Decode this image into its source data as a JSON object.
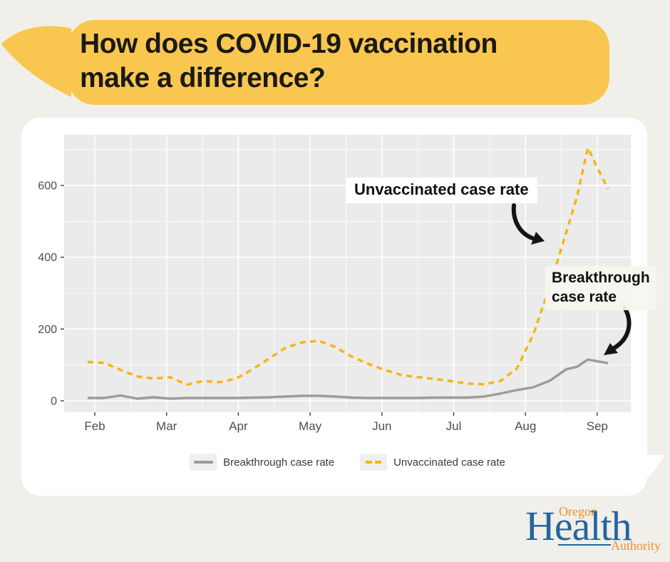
{
  "theme": {
    "page_bg": "#F0EFE9",
    "bubble_yellow": "#F9C74F",
    "annotation_ink": "#141414",
    "logo_blue": "#25649F",
    "logo_orange": "#F0902F"
  },
  "title": {
    "line1": "How does COVID-19 vaccination",
    "line2": "make a difference?"
  },
  "annotations": {
    "unvaccinated_label": "Unvaccinated case rate",
    "breakthrough_label_line1": "Breakthrough",
    "breakthrough_label_line2": "case rate"
  },
  "legend": {
    "breakthrough": "Breakthrough case rate",
    "unvaccinated": "Unvaccinated case rate"
  },
  "logo": {
    "oregon": "Oregon",
    "health": "Health",
    "authority": "Authority"
  },
  "chart_data": {
    "type": "line",
    "title": "",
    "xlabel": "",
    "ylabel": "",
    "panel_bg": "#EBEBEB",
    "grid_color": "#FFFFFF",
    "axis_text_color": "#4D4D4D",
    "tick_color": "#333333",
    "x_axis": {
      "tick_labels": [
        "Feb",
        "Mar",
        "Apr",
        "May",
        "Jun",
        "Jul",
        "Aug",
        "Sep"
      ],
      "tick_months": [
        0,
        1,
        2,
        3,
        4,
        5,
        6,
        7
      ],
      "minor_months": [
        0.5,
        1.5,
        2.5,
        3.5,
        4.5,
        5.5,
        6.5
      ],
      "range_months": [
        -0.43,
        7.47
      ]
    },
    "y_axis": {
      "ticks": [
        0,
        200,
        400,
        600
      ],
      "minor_ticks": [
        100,
        300,
        500,
        700
      ],
      "range": [
        -30,
        740
      ]
    },
    "legend_position": "bottom",
    "grid": true,
    "x_months_from_feb1": [
      -0.1,
      0.13,
      0.36,
      0.59,
      0.82,
      1.05,
      1.28,
      1.51,
      1.74,
      1.97,
      2.2,
      2.43,
      2.66,
      2.89,
      3.12,
      3.35,
      3.58,
      3.81,
      4.04,
      4.27,
      4.5,
      4.73,
      4.96,
      5.19,
      5.42,
      5.65,
      5.88,
      6.11,
      6.34,
      6.57,
      6.72,
      6.87,
      7.0,
      7.15
    ],
    "series": [
      {
        "name": "Breakthrough case rate",
        "style": "solid",
        "color": "#9C9C9C",
        "values": [
          8,
          8,
          15,
          6,
          10,
          6,
          8,
          8,
          8,
          8,
          9,
          10,
          12,
          14,
          14,
          12,
          9,
          8,
          8,
          8,
          8,
          9,
          9,
          9,
          12,
          20,
          30,
          38,
          56,
          88,
          95,
          115,
          110,
          105
        ]
      },
      {
        "name": "Unvaccinated case rate",
        "style": "dashed",
        "color": "#F8B30E",
        "values": [
          108,
          106,
          86,
          68,
          62,
          66,
          45,
          55,
          52,
          62,
          88,
          118,
          148,
          163,
          167,
          150,
          123,
          103,
          86,
          72,
          66,
          61,
          55,
          48,
          46,
          55,
          90,
          185,
          320,
          470,
          570,
          705,
          650,
          590
        ]
      }
    ]
  }
}
